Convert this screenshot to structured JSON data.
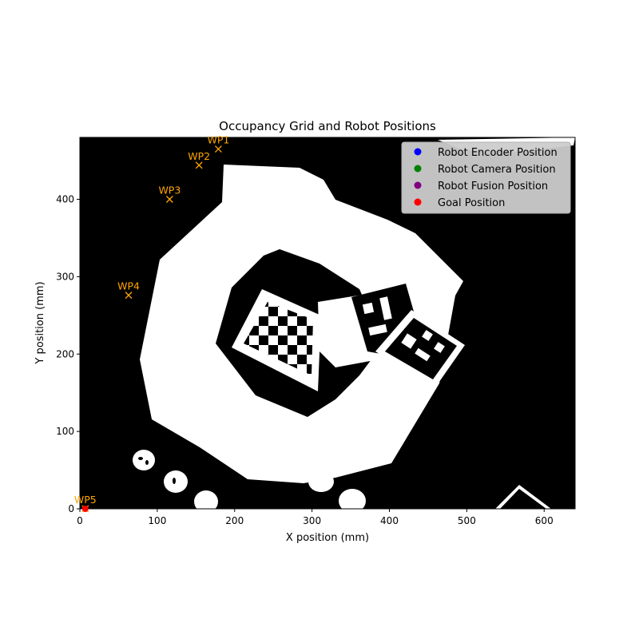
{
  "chart_data": {
    "type": "scatter",
    "title": "Occupancy Grid and Robot Positions",
    "xlabel": "X position (mm)",
    "ylabel": "Y position (mm)",
    "xlim": [
      0,
      640
    ],
    "ylim": [
      0,
      480
    ],
    "xticks": [
      0,
      100,
      200,
      300,
      400,
      500,
      600
    ],
    "yticks": [
      0,
      100,
      200,
      300,
      400
    ],
    "background": "occupancy grid image (white = free, black = occupied)",
    "legend": {
      "placement": "top-right",
      "entries": [
        {
          "label": "Robot Encoder Position",
          "color": "#0000ff"
        },
        {
          "label": "Robot Camera Position",
          "color": "#008000"
        },
        {
          "label": "Robot Fusion Position",
          "color": "#800080"
        },
        {
          "label": "Goal Position",
          "color": "#ff0000"
        }
      ]
    },
    "waypoints": {
      "color": "#ffa500",
      "marker": "x",
      "points": [
        {
          "label": "WP1",
          "x": 179,
          "y": 465
        },
        {
          "label": "WP2",
          "x": 154,
          "y": 444
        },
        {
          "label": "WP3",
          "x": 116,
          "y": 400
        },
        {
          "label": "WP4",
          "x": 63,
          "y": 276
        },
        {
          "label": "WP5",
          "x": 7,
          "y": 0
        }
      ]
    },
    "goal": {
      "x": 7,
      "y": 0
    }
  }
}
